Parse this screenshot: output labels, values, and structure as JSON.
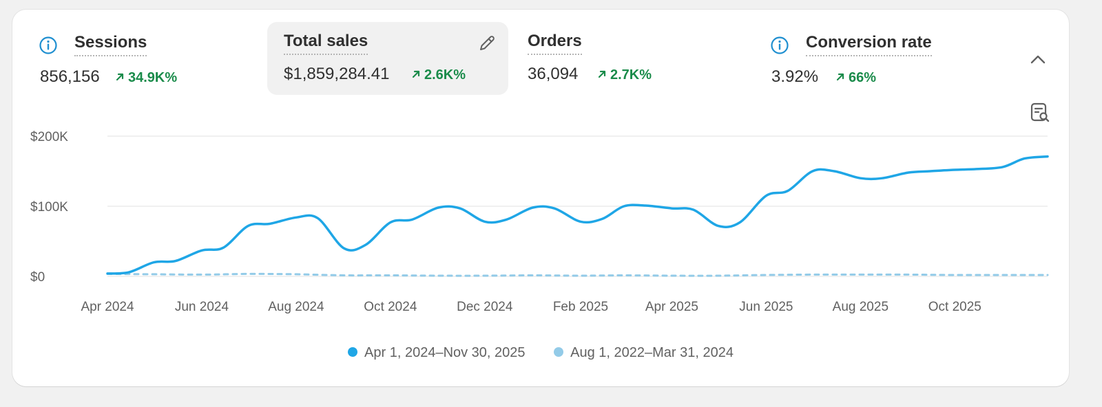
{
  "metrics": [
    {
      "title": "Sessions",
      "value": "856,156",
      "change": "34.9K%",
      "has_info": true,
      "selected": false
    },
    {
      "title": "Total sales",
      "value": "$1,859,284.41",
      "change": "2.6K%",
      "has_info": false,
      "selected": true
    },
    {
      "title": "Orders",
      "value": "36,094",
      "change": "2.7K%",
      "has_info": false,
      "selected": false
    },
    {
      "title": "Conversion rate",
      "value": "3.92%",
      "change": "66%",
      "has_info": true,
      "selected": false
    }
  ],
  "colors": {
    "current": "#1fa6e6",
    "previous": "#93cbe8",
    "positive": "#1a8b4a",
    "grid": "#ebebeb"
  },
  "icons": {
    "info": "info-icon",
    "edit": "pencil-icon",
    "collapse": "chevron-up-icon",
    "chart_tool": "chart-search-icon",
    "trend": "arrow-up-right-icon"
  },
  "chart_data": {
    "type": "line",
    "title": "",
    "xlabel": "",
    "ylabel": "",
    "ylim": [
      0,
      200000
    ],
    "y_ticks": [
      {
        "value": 200000,
        "label": "$200K"
      },
      {
        "value": 100000,
        "label": "$100K"
      },
      {
        "value": 0,
        "label": "$0"
      }
    ],
    "x_ticks": [
      "Apr 2024",
      "Jun 2024",
      "Aug 2024",
      "Oct 2024",
      "Dec 2024",
      "Feb 2025",
      "Apr 2025",
      "Jun 2025",
      "Aug 2025",
      "Oct 2025"
    ],
    "grid": true,
    "legend_position": "bottom-center",
    "series": [
      {
        "name": "Apr 1, 2024–Nov 30, 2025",
        "style": "solid",
        "x": [
          "2024-04-01",
          "2024-04-15",
          "2024-05-01",
          "2024-05-15",
          "2024-06-01",
          "2024-06-15",
          "2024-07-01",
          "2024-07-15",
          "2024-08-01",
          "2024-08-15",
          "2024-09-01",
          "2024-09-15",
          "2024-10-01",
          "2024-10-15",
          "2024-11-01",
          "2024-11-15",
          "2024-12-01",
          "2024-12-15",
          "2025-01-01",
          "2025-01-15",
          "2025-02-01",
          "2025-02-15",
          "2025-03-01",
          "2025-03-15",
          "2025-04-01",
          "2025-04-15",
          "2025-05-01",
          "2025-05-15",
          "2025-06-01",
          "2025-06-15",
          "2025-07-01",
          "2025-07-15",
          "2025-08-01",
          "2025-08-15",
          "2025-09-01",
          "2025-09-15",
          "2025-10-01",
          "2025-10-15",
          "2025-11-01",
          "2025-11-15",
          "2025-11-30"
        ],
        "y": [
          4000,
          6000,
          20000,
          22000,
          37000,
          41000,
          72000,
          75000,
          84000,
          83000,
          40000,
          45000,
          77000,
          81000,
          98000,
          97000,
          78000,
          81000,
          98000,
          97000,
          78000,
          82000,
          100000,
          101000,
          97000,
          95000,
          72000,
          77000,
          115000,
          122000,
          150000,
          150000,
          140000,
          140000,
          148000,
          150000,
          152000,
          153000,
          156000,
          168000,
          171000
        ]
      },
      {
        "name": "Aug 1, 2022–Mar 31, 2024",
        "style": "dashed",
        "x": [
          "2024-04-01",
          "2024-05-01",
          "2024-06-01",
          "2024-07-01",
          "2024-08-01",
          "2024-09-01",
          "2024-10-01",
          "2024-11-01",
          "2024-12-01",
          "2025-01-01",
          "2025-02-01",
          "2025-03-01",
          "2025-04-01",
          "2025-05-01",
          "2025-06-01",
          "2025-07-01",
          "2025-08-01",
          "2025-09-01",
          "2025-10-01",
          "2025-11-01",
          "2025-11-30"
        ],
        "y": [
          3500,
          3000,
          2500,
          3500,
          3000,
          1500,
          1500,
          1000,
          1000,
          1500,
          1000,
          1500,
          1000,
          1000,
          2000,
          2500,
          2500,
          2500,
          2000,
          2000,
          2000
        ]
      }
    ]
  }
}
